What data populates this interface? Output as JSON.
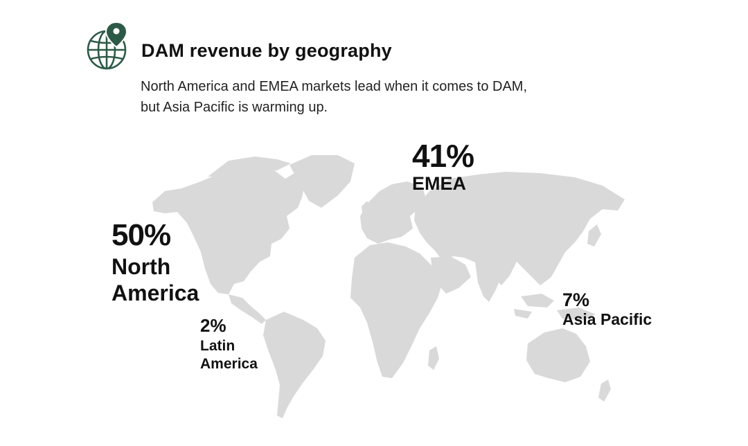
{
  "header": {
    "title": "DAM revenue by geography",
    "subtitle": "North America and EMEA markets lead when it comes to DAM, but Asia Pacific is warming up.",
    "icon": "globe-location-pin-icon",
    "icon_color": "#2d5a46"
  },
  "map": {
    "land_color": "#d9d9d9",
    "regions": [
      {
        "id": "north-america",
        "name": "North America",
        "share": 50,
        "share_label": "50%"
      },
      {
        "id": "emea",
        "name": "EMEA",
        "share": 41,
        "share_label": "41%"
      },
      {
        "id": "latin-america",
        "name": "Latin America",
        "share": 2,
        "share_label": "2%"
      },
      {
        "id": "asia-pacific",
        "name": "Asia Pacific",
        "share": 7,
        "share_label": "7%"
      }
    ]
  }
}
